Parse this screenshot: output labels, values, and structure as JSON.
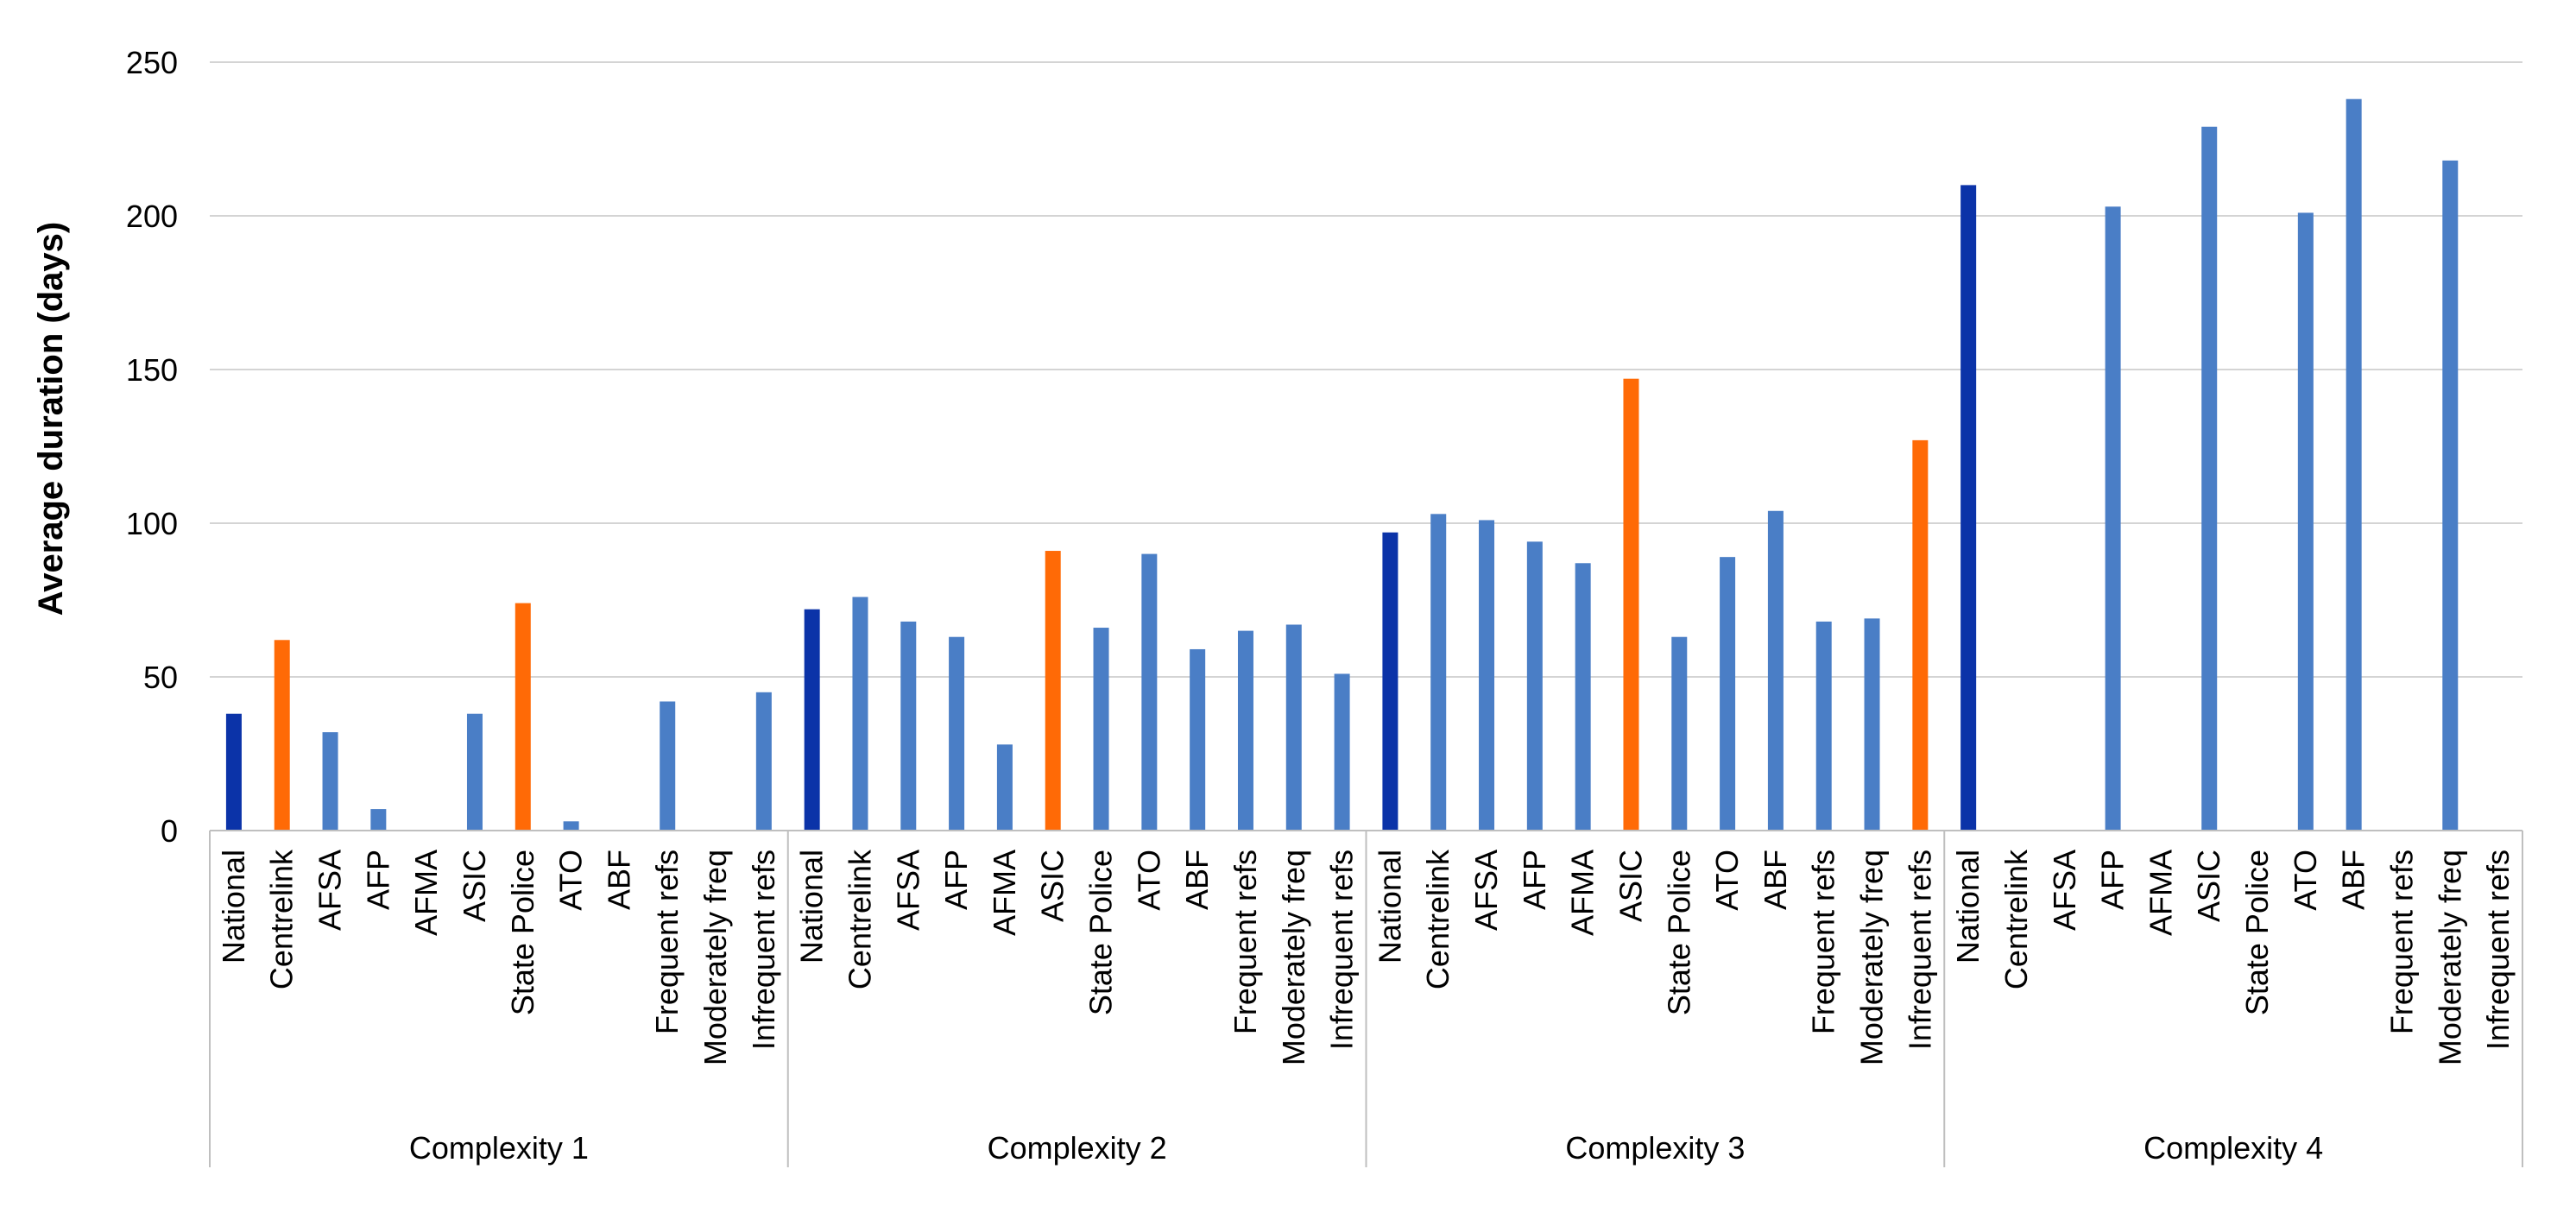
{
  "chart_data": {
    "type": "bar",
    "title": "",
    "ylabel": "Average duration (days)",
    "xlabel": "",
    "ylim": [
      0,
      250
    ],
    "yticks": [
      0,
      50,
      100,
      150,
      200,
      250
    ],
    "grid": true,
    "legend": "none",
    "colors": {
      "national": "#0b33a8",
      "highlight": "#ff6a06",
      "default": "#4a7ec6",
      "grid": "#d4d4d4",
      "axis": "#bfbfbf"
    },
    "categories": [
      "National",
      "Centrelink",
      "AFSA",
      "AFP",
      "AFMA",
      "ASIC",
      "State Police",
      "ATO",
      "ABF",
      "Frequent refs",
      "Moderately freq",
      "Infrequent refs"
    ],
    "groups": [
      {
        "name": "Complexity 1",
        "values": [
          38,
          62,
          32,
          7,
          null,
          38,
          74,
          3,
          null,
          42,
          null,
          45
        ],
        "highlight": [
          "Centrelink",
          "State Police"
        ]
      },
      {
        "name": "Complexity 2",
        "values": [
          72,
          76,
          68,
          63,
          28,
          91,
          66,
          90,
          59,
          65,
          67,
          51
        ],
        "highlight": [
          "ASIC"
        ]
      },
      {
        "name": "Complexity 3",
        "values": [
          97,
          103,
          101,
          94,
          87,
          147,
          63,
          89,
          104,
          68,
          69,
          127
        ],
        "highlight": [
          "ASIC",
          "Infrequent refs"
        ]
      },
      {
        "name": "Complexity 4",
        "values": [
          210,
          null,
          null,
          203,
          null,
          229,
          null,
          201,
          238,
          null,
          218,
          null
        ],
        "highlight": []
      }
    ]
  }
}
